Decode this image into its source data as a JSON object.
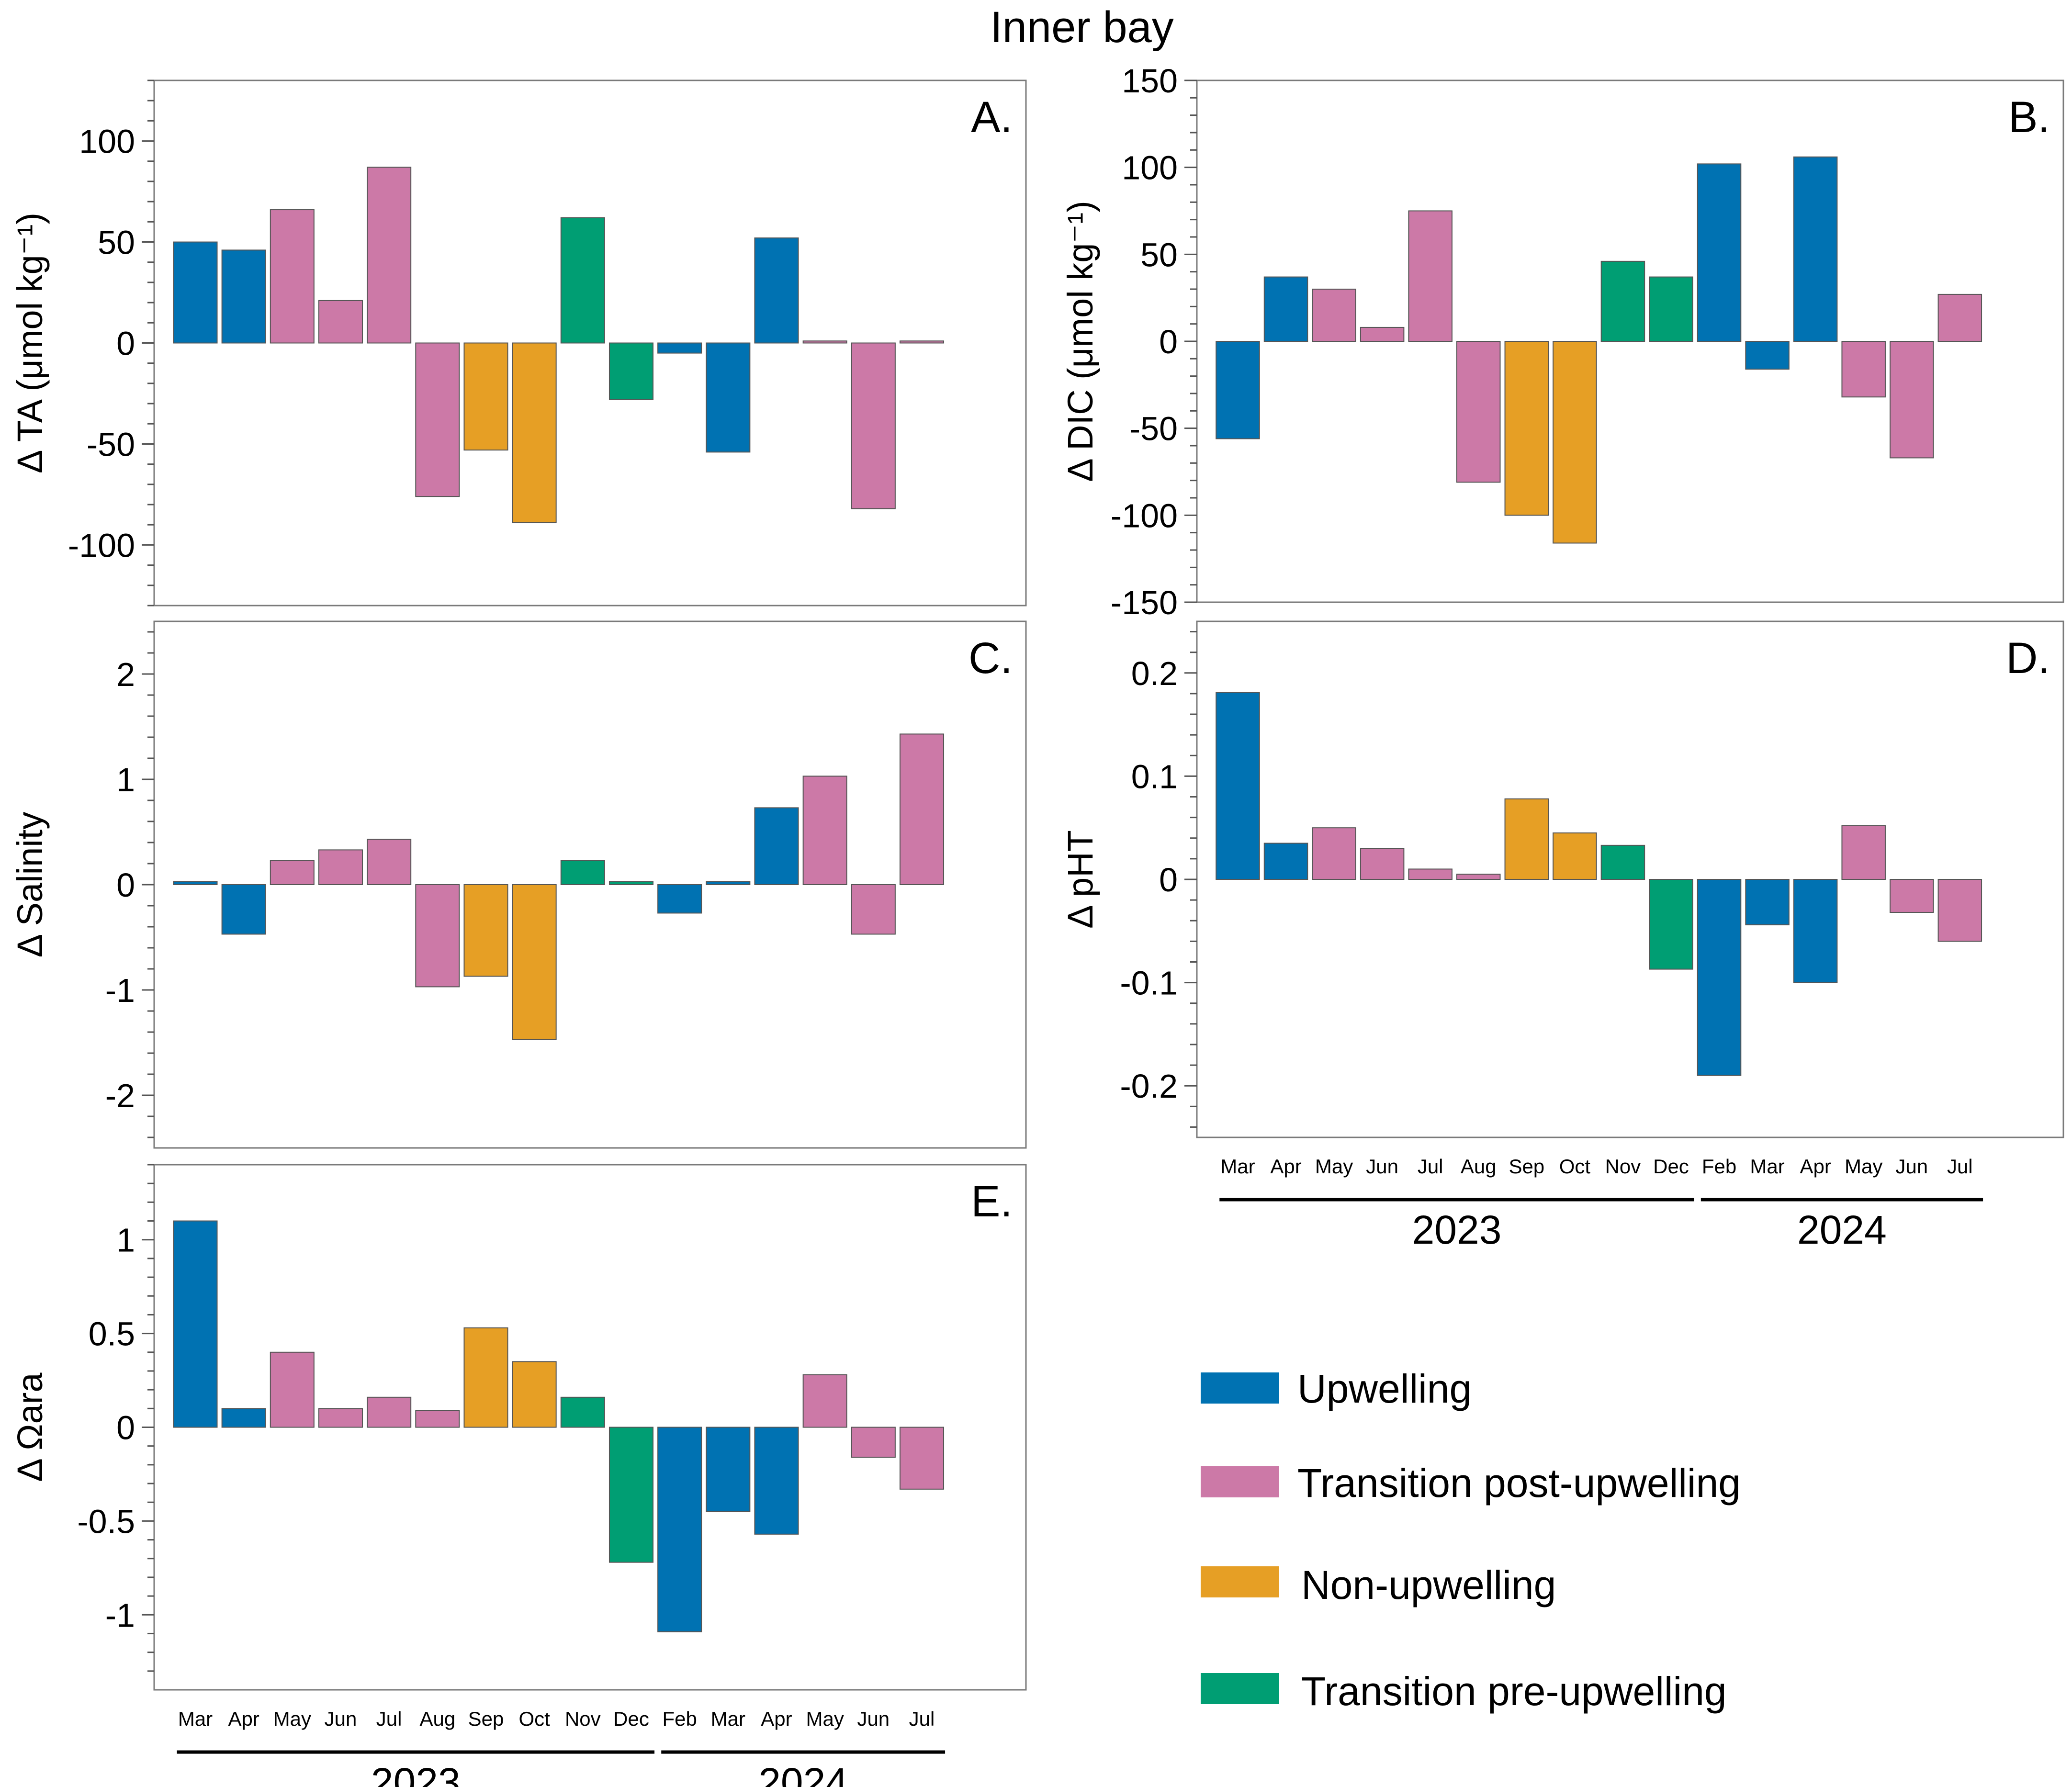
{
  "figure": {
    "title": "Inner bay",
    "months": [
      "Mar",
      "Apr",
      "May",
      "Jun",
      "Jul",
      "Aug",
      "Sep",
      "Oct",
      "Nov",
      "Dec",
      "Feb",
      "Mar",
      "Apr",
      "May",
      "Jun",
      "Jul"
    ],
    "years": [
      {
        "label": "2023",
        "first": 0,
        "last": 9
      },
      {
        "label": "2024",
        "first": 10,
        "last": 15
      }
    ]
  },
  "colors": {
    "upwelling": "#0072B2",
    "transition_post": "#CC79A7",
    "non_upwelling": "#E69F25",
    "transition_pre": "#009E73"
  },
  "legend": [
    {
      "key": "upwelling",
      "label": "Upwelling"
    },
    {
      "key": "transition_post",
      "label": "Transition post-upwelling"
    },
    {
      "key": "non_upwelling",
      "label": "Non-upwelling"
    },
    {
      "key": "transition_pre",
      "label": "Transition pre-upwelling"
    }
  ],
  "chart_data": [
    {
      "type": "bar",
      "panel": "A.",
      "ylabel": "Δ TA (μmol kg⁻¹)",
      "ylim": [
        -130,
        130
      ],
      "yticks": [
        100,
        50,
        0,
        -50,
        -100
      ],
      "ytick_labels": [
        "100",
        "50",
        "0",
        "-50",
        "-100"
      ],
      "categories": [
        "Mar",
        "Apr",
        "May",
        "Jun",
        "Jul",
        "Aug",
        "Sep",
        "Oct",
        "Nov",
        "Dec",
        "Feb",
        "Mar",
        "Apr",
        "May",
        "Jun",
        "Jul"
      ],
      "values": [
        50,
        46,
        66,
        21,
        87,
        -76,
        -53,
        -89,
        62,
        -28,
        -5,
        -54,
        52,
        1,
        -82,
        1
      ],
      "groups": [
        "upwelling",
        "upwelling",
        "transition_post",
        "transition_post",
        "transition_post",
        "transition_post",
        "non_upwelling",
        "non_upwelling",
        "transition_pre",
        "transition_pre",
        "upwelling",
        "upwelling",
        "upwelling",
        "transition_post",
        "transition_post",
        "transition_post"
      ]
    },
    {
      "type": "bar",
      "panel": "B.",
      "ylabel": "Δ DIC (μmol kg⁻¹)",
      "ylim": [
        -150,
        150
      ],
      "yticks": [
        150,
        100,
        50,
        0,
        -50,
        -100,
        -150
      ],
      "ytick_labels": [
        "150",
        "100",
        "50",
        "0",
        "-50",
        "-100",
        "-150"
      ],
      "categories": [
        "Mar",
        "Apr",
        "May",
        "Jun",
        "Jul",
        "Aug",
        "Sep",
        "Oct",
        "Nov",
        "Dec",
        "Feb",
        "Mar",
        "Apr",
        "May",
        "Jun",
        "Jul"
      ],
      "values": [
        -56,
        37,
        30,
        8,
        75,
        -81,
        -100,
        -116,
        46,
        37,
        102,
        -16,
        106,
        -32,
        -67,
        27
      ],
      "groups": [
        "upwelling",
        "upwelling",
        "transition_post",
        "transition_post",
        "transition_post",
        "transition_post",
        "non_upwelling",
        "non_upwelling",
        "transition_pre",
        "transition_pre",
        "upwelling",
        "upwelling",
        "upwelling",
        "transition_post",
        "transition_post",
        "transition_post"
      ]
    },
    {
      "type": "bar",
      "panel": "C.",
      "ylabel": "Δ Salinity",
      "ylim": [
        -2.5,
        2.5
      ],
      "yticks": [
        2,
        1,
        0,
        -1,
        -2
      ],
      "ytick_labels": [
        "2",
        "1",
        "0",
        "-1",
        "-2"
      ],
      "categories": [
        "Mar",
        "Apr",
        "May",
        "Jun",
        "Jul",
        "Aug",
        "Sep",
        "Oct",
        "Nov",
        "Dec",
        "Feb",
        "Mar",
        "Apr",
        "May",
        "Jun",
        "Jul"
      ],
      "values": [
        0.03,
        -0.47,
        0.23,
        0.33,
        0.43,
        -0.97,
        -0.87,
        -1.47,
        0.23,
        0.03,
        -0.27,
        0.03,
        0.73,
        1.03,
        -0.47,
        1.43
      ],
      "groups": [
        "upwelling",
        "upwelling",
        "transition_post",
        "transition_post",
        "transition_post",
        "transition_post",
        "non_upwelling",
        "non_upwelling",
        "transition_pre",
        "transition_pre",
        "upwelling",
        "upwelling",
        "upwelling",
        "transition_post",
        "transition_post",
        "transition_post"
      ]
    },
    {
      "type": "bar",
      "panel": "D.",
      "ylabel": "Δ pHT",
      "ylim": [
        -0.25,
        0.25
      ],
      "yticks": [
        0.2,
        0.1,
        0,
        -0.1,
        -0.2
      ],
      "ytick_labels": [
        "0.2",
        "0.1",
        "0",
        "-0.1",
        "-0.2"
      ],
      "categories": [
        "Mar",
        "Apr",
        "May",
        "Jun",
        "Jul",
        "Aug",
        "Sep",
        "Oct",
        "Nov",
        "Dec",
        "Feb",
        "Mar",
        "Apr",
        "May",
        "Jun",
        "Jul"
      ],
      "values": [
        0.181,
        0.035,
        0.05,
        0.03,
        0.01,
        0.005,
        0.078,
        0.045,
        0.033,
        -0.087,
        -0.19,
        -0.044,
        -0.1,
        0.052,
        -0.032,
        -0.06
      ],
      "groups": [
        "upwelling",
        "upwelling",
        "transition_post",
        "transition_post",
        "transition_post",
        "transition_post",
        "non_upwelling",
        "non_upwelling",
        "transition_pre",
        "transition_pre",
        "upwelling",
        "upwelling",
        "upwelling",
        "transition_post",
        "transition_post",
        "transition_post"
      ]
    },
    {
      "type": "bar",
      "panel": "E.",
      "ylabel": "Δ Ωara",
      "ylim": [
        -1.4,
        1.4
      ],
      "yticks": [
        1,
        0.5,
        0,
        -0.5,
        -1
      ],
      "ytick_labels": [
        "1",
        "0.5",
        "0",
        "-0.5",
        "-1"
      ],
      "categories": [
        "Mar",
        "Apr",
        "May",
        "Jun",
        "Jul",
        "Aug",
        "Sep",
        "Oct",
        "Nov",
        "Dec",
        "Feb",
        "Mar",
        "Apr",
        "May",
        "Jun",
        "Jul"
      ],
      "values": [
        1.1,
        0.1,
        0.4,
        0.1,
        0.16,
        0.09,
        0.53,
        0.35,
        0.16,
        -0.72,
        -1.09,
        -0.45,
        -0.57,
        0.28,
        -0.16,
        -0.33
      ],
      "groups": [
        "upwelling",
        "upwelling",
        "transition_post",
        "transition_post",
        "transition_post",
        "transition_post",
        "non_upwelling",
        "non_upwelling",
        "transition_pre",
        "transition_pre",
        "upwelling",
        "upwelling",
        "upwelling",
        "transition_post",
        "transition_post",
        "transition_post"
      ]
    }
  ]
}
